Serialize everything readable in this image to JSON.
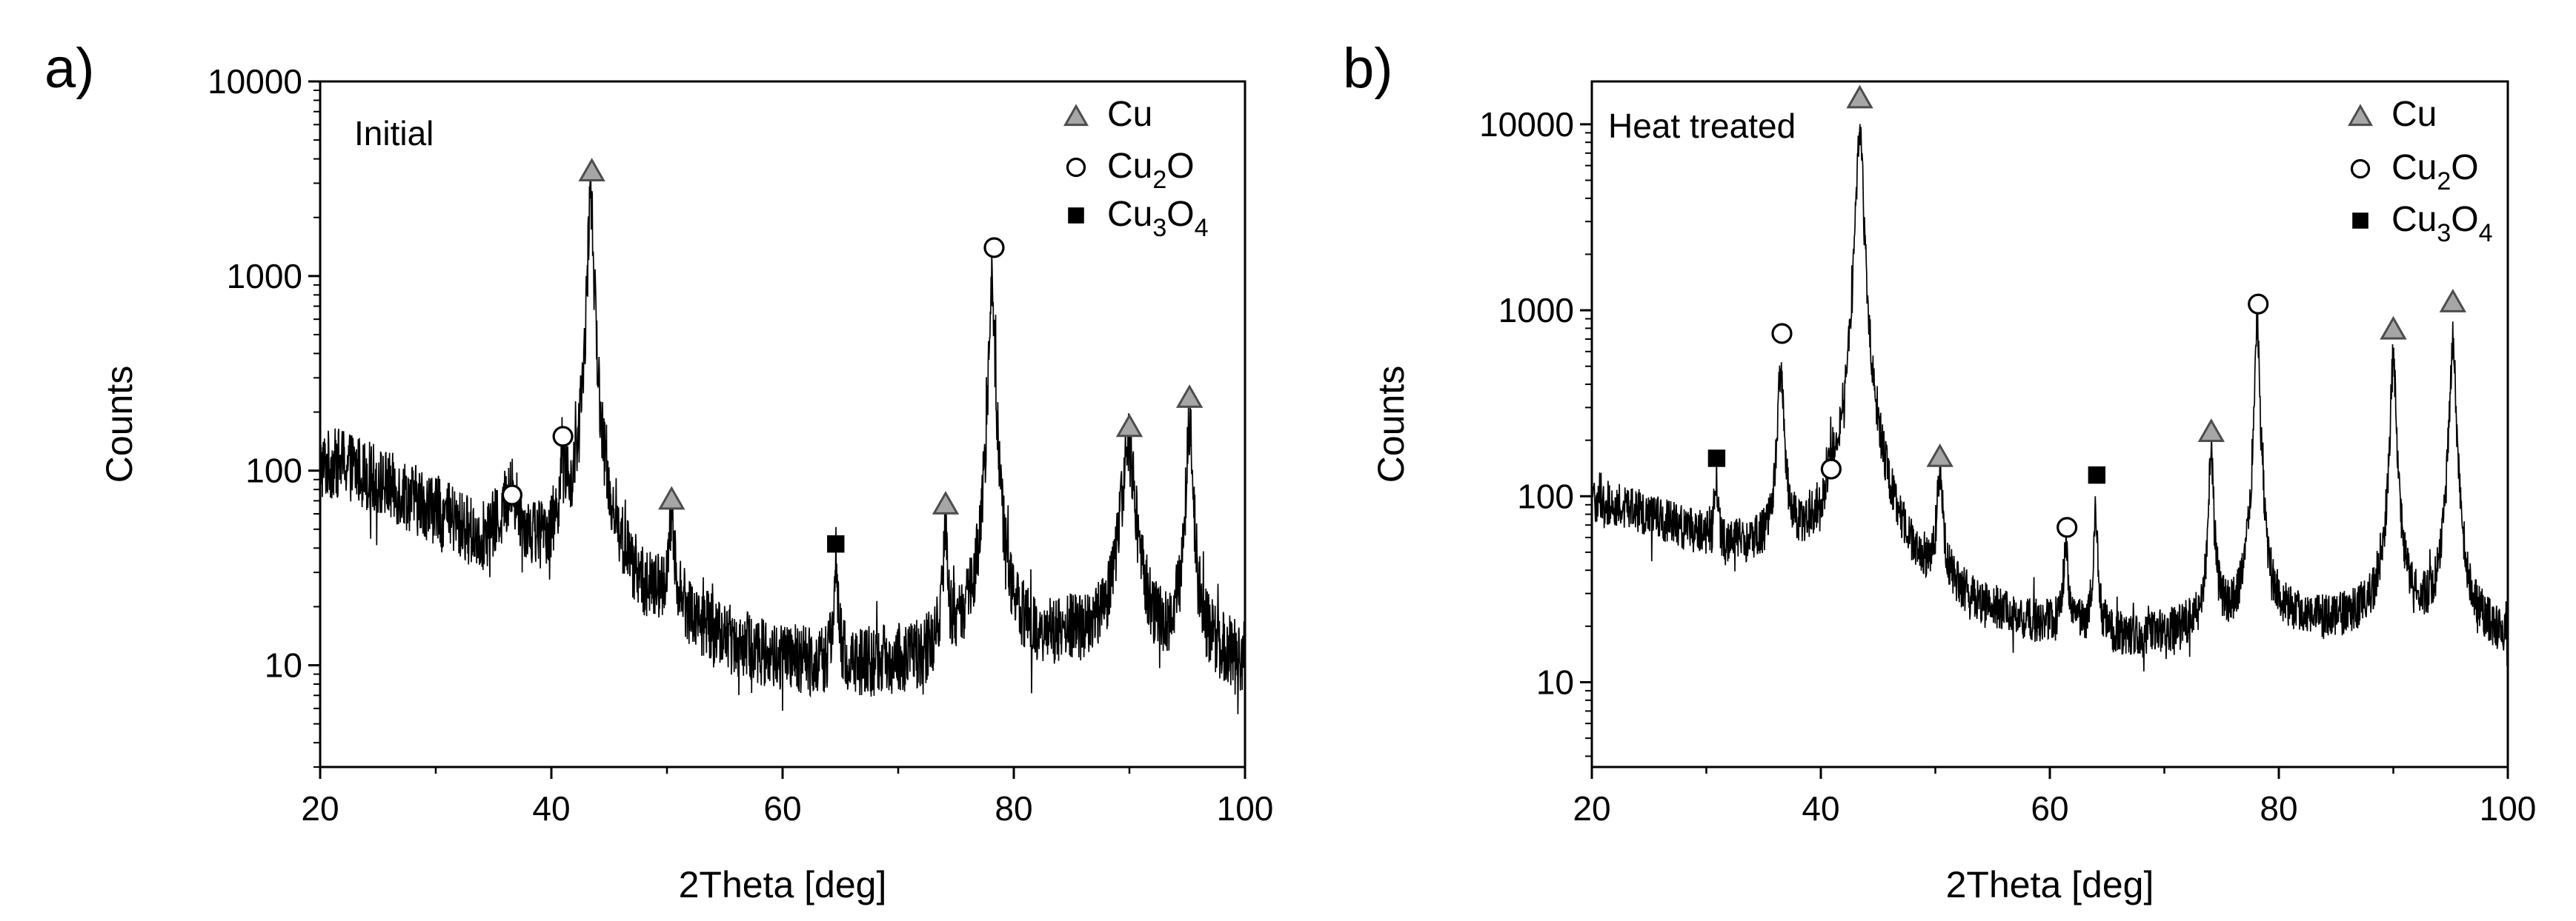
{
  "figure": {
    "description_panels": [
      "a",
      "b"
    ]
  },
  "legend_symbols": {
    "Cu": "triangle-marker-icon",
    "Cu2O": "circle-marker-icon",
    "Cu3O4": "square-marker-icon"
  },
  "colors": {
    "pattern_line": "#000000",
    "triangle_fill": "#a6a6a6",
    "triangle_stroke": "#4d4d4d",
    "circle_fill": "#ffffff",
    "square_fill": "#000000"
  },
  "chart_data": [
    {
      "panel": "a)",
      "type": "line",
      "title": "Initial",
      "xlabel": "2Theta [deg]",
      "ylabel": "Counts",
      "xlim": [
        20,
        100
      ],
      "ylim": [
        3,
        10000
      ],
      "yscale": "log",
      "xticks": [
        20,
        40,
        60,
        80,
        100
      ],
      "xtick_labels": [
        "20",
        "40",
        "60",
        "80",
        "100"
      ],
      "yticks": [
        10,
        100,
        1000,
        10000
      ],
      "ytick_labels": [
        "10",
        "100",
        "1000",
        "10000"
      ],
      "legend": {
        "position": "top-right",
        "entries": [
          {
            "symbol": "triangle",
            "base": "Cu",
            "sub": "",
            "tail": ""
          },
          {
            "symbol": "circle",
            "base": "Cu",
            "sub": "2",
            "tail": "O"
          },
          {
            "symbol": "square",
            "base": "Cu",
            "sub": "3",
            "tail": "O",
            "sub2": "4"
          }
        ]
      },
      "background": [
        [
          20,
          105
        ],
        [
          22,
          110
        ],
        [
          26,
          82
        ],
        [
          30,
          62
        ],
        [
          34,
          42
        ],
        [
          36.5,
          48
        ],
        [
          38,
          40
        ],
        [
          40,
          36
        ],
        [
          44,
          32
        ],
        [
          46,
          26
        ],
        [
          48,
          20
        ],
        [
          52,
          16
        ],
        [
          56,
          12
        ],
        [
          60,
          10
        ],
        [
          66,
          9.5
        ],
        [
          72,
          10
        ],
        [
          76,
          11
        ],
        [
          80,
          12
        ],
        [
          86,
          13
        ],
        [
          92,
          11
        ],
        [
          96,
          11
        ],
        [
          100,
          10
        ]
      ],
      "noise_amp": 0.42,
      "peaks": [
        {
          "x": 36.5,
          "y": 55,
          "w": 1.2
        },
        {
          "x": 41.0,
          "y": 95,
          "w": 0.35
        },
        {
          "x": 43.4,
          "y": 2500,
          "w": 0.35
        },
        {
          "x": 50.4,
          "y": 42,
          "w": 0.45
        },
        {
          "x": 64.6,
          "y": 30,
          "w": 0.25
        },
        {
          "x": 74.1,
          "y": 45,
          "w": 0.3
        },
        {
          "x": 78.1,
          "y": 1050,
          "w": 0.3
        },
        {
          "x": 89.9,
          "y": 130,
          "w": 0.8
        },
        {
          "x": 95.2,
          "y": 165,
          "w": 0.4
        }
      ],
      "markers": [
        {
          "phase": "Cu2O",
          "symbol": "circle",
          "x": 36.6,
          "y": 75
        },
        {
          "phase": "Cu2O",
          "symbol": "circle",
          "x": 41.0,
          "y": 150
        },
        {
          "phase": "Cu",
          "symbol": "triangle",
          "x": 43.5,
          "y": 3500
        },
        {
          "phase": "Cu",
          "symbol": "triangle",
          "x": 50.4,
          "y": 72
        },
        {
          "phase": "Cu3O4",
          "symbol": "square",
          "x": 64.6,
          "y": 42
        },
        {
          "phase": "Cu",
          "symbol": "triangle",
          "x": 74.1,
          "y": 68
        },
        {
          "phase": "Cu2O",
          "symbol": "circle",
          "x": 78.3,
          "y": 1400
        },
        {
          "phase": "Cu",
          "symbol": "triangle",
          "x": 90.0,
          "y": 170
        },
        {
          "phase": "Cu",
          "symbol": "triangle",
          "x": 95.2,
          "y": 240
        }
      ]
    },
    {
      "panel": "b)",
      "type": "line",
      "title": "Heat treated",
      "xlabel": "2Theta [deg]",
      "ylabel": "Counts",
      "xlim": [
        20,
        100
      ],
      "ylim": [
        3.5,
        17000
      ],
      "yscale": "log",
      "xticks": [
        20,
        40,
        60,
        80,
        100
      ],
      "xtick_labels": [
        "20",
        "40",
        "60",
        "80",
        "100"
      ],
      "yticks": [
        10,
        100,
        1000,
        10000
      ],
      "ytick_labels": [
        "10",
        "100",
        "1000",
        "10000"
      ],
      "legend": {
        "position": "top-right",
        "entries": [
          {
            "symbol": "triangle",
            "base": "Cu",
            "sub": "",
            "tail": ""
          },
          {
            "symbol": "circle",
            "base": "Cu",
            "sub": "2",
            "tail": "O"
          },
          {
            "symbol": "square",
            "base": "Cu",
            "sub": "3",
            "tail": "O",
            "sub2": "4"
          }
        ]
      },
      "background": [
        [
          20,
          95
        ],
        [
          24,
          82
        ],
        [
          28,
          65
        ],
        [
          32,
          52
        ],
        [
          34,
          48
        ],
        [
          38,
          45
        ],
        [
          40,
          42
        ],
        [
          42,
          55
        ],
        [
          44,
          70
        ],
        [
          46,
          38
        ],
        [
          48,
          28
        ],
        [
          52,
          24
        ],
        [
          56,
          20
        ],
        [
          60,
          18
        ],
        [
          64,
          17
        ],
        [
          68,
          16
        ],
        [
          72,
          18
        ],
        [
          76,
          19
        ],
        [
          80,
          20
        ],
        [
          84,
          20
        ],
        [
          88,
          22
        ],
        [
          92,
          20
        ],
        [
          96,
          19
        ],
        [
          100,
          16
        ]
      ],
      "noise_amp": 0.28,
      "peaks": [
        {
          "x": 30.9,
          "y": 85,
          "w": 0.2
        },
        {
          "x": 36.5,
          "y": 480,
          "w": 0.35
        },
        {
          "x": 41.0,
          "y": 60,
          "w": 0.4
        },
        {
          "x": 43.4,
          "y": 10500,
          "w": 0.35
        },
        {
          "x": 50.4,
          "y": 105,
          "w": 0.4
        },
        {
          "x": 61.4,
          "y": 45,
          "w": 0.3
        },
        {
          "x": 64.0,
          "y": 80,
          "w": 0.25
        },
        {
          "x": 74.1,
          "y": 165,
          "w": 0.3
        },
        {
          "x": 78.1,
          "y": 780,
          "w": 0.3
        },
        {
          "x": 90.0,
          "y": 530,
          "w": 0.35
        },
        {
          "x": 95.2,
          "y": 690,
          "w": 0.35
        }
      ],
      "markers": [
        {
          "phase": "Cu3O4",
          "symbol": "square",
          "x": 30.9,
          "y": 160
        },
        {
          "phase": "Cu2O",
          "symbol": "circle",
          "x": 36.6,
          "y": 750
        },
        {
          "phase": "Cu2O",
          "symbol": "circle",
          "x": 40.9,
          "y": 140
        },
        {
          "phase": "Cu",
          "symbol": "triangle",
          "x": 43.4,
          "y": 14000
        },
        {
          "phase": "Cu",
          "symbol": "triangle",
          "x": 50.4,
          "y": 165
        },
        {
          "phase": "Cu2O",
          "symbol": "circle",
          "x": 61.5,
          "y": 68
        },
        {
          "phase": "Cu3O4",
          "symbol": "square",
          "x": 64.1,
          "y": 130
        },
        {
          "phase": "Cu",
          "symbol": "triangle",
          "x": 74.1,
          "y": 225
        },
        {
          "phase": "Cu2O",
          "symbol": "circle",
          "x": 78.2,
          "y": 1080
        },
        {
          "phase": "Cu",
          "symbol": "triangle",
          "x": 90.0,
          "y": 800
        },
        {
          "phase": "Cu",
          "symbol": "triangle",
          "x": 95.2,
          "y": 1120
        }
      ]
    }
  ]
}
